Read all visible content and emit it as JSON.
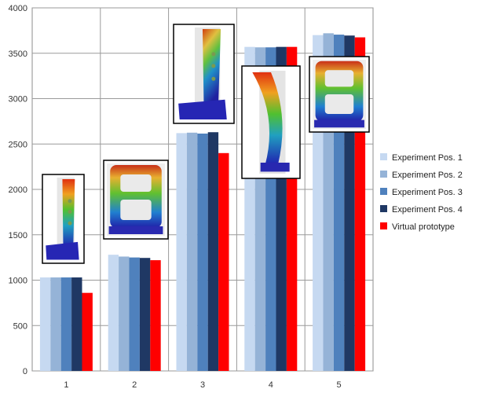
{
  "chart_data": {
    "type": "bar",
    "categories": [
      "1",
      "2",
      "3",
      "4",
      "5"
    ],
    "series": [
      {
        "name": "Experiment Pos. 1",
        "color": "#c6d9f1",
        "values": [
          1030,
          1280,
          2620,
          3570,
          3700
        ]
      },
      {
        "name": "Experiment Pos. 2",
        "color": "#95b3d7",
        "values": [
          1030,
          1260,
          2625,
          3565,
          3720
        ]
      },
      {
        "name": "Experiment Pos. 3",
        "color": "#4f81bd",
        "values": [
          1030,
          1250,
          2615,
          3565,
          3705
        ]
      },
      {
        "name": "Experiment Pos. 4",
        "color": "#1f3864",
        "values": [
          1030,
          1245,
          2630,
          3570,
          3695
        ]
      },
      {
        "name": "Virtual prototype",
        "color": "#ff0000",
        "values": [
          860,
          1220,
          2400,
          3570,
          3675
        ]
      }
    ],
    "ylim": [
      0,
      4000
    ],
    "yticks": [
      "0",
      "500",
      "1000",
      "1500",
      "2000",
      "2500",
      "3000",
      "3500",
      "4000"
    ],
    "grid": true,
    "legend_position": "right",
    "insets": [
      {
        "category": "1",
        "icon": "fea-bracket-simulation-image"
      },
      {
        "category": "2",
        "icon": "fea-frame-simulation-image"
      },
      {
        "category": "3",
        "icon": "fea-bracket-simulation-image"
      },
      {
        "category": "4",
        "icon": "fea-curved-bracket-simulation-image"
      },
      {
        "category": "5",
        "icon": "fea-frame-simulation-image"
      }
    ]
  }
}
